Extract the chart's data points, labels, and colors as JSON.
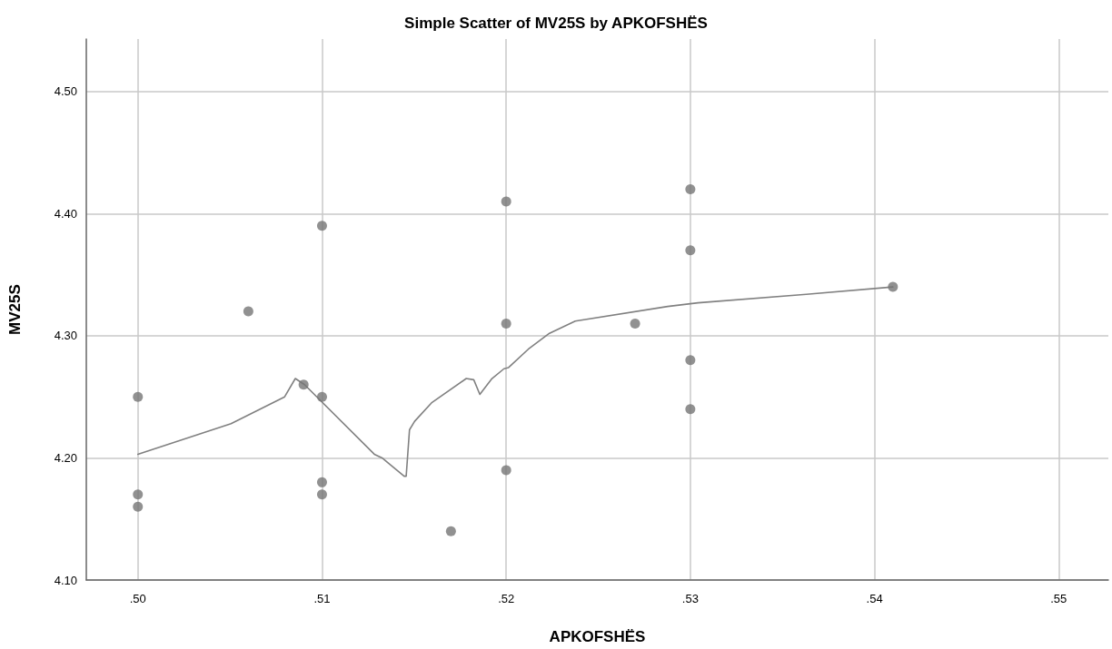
{
  "chart_data": {
    "type": "scatter",
    "title": "Simple Scatter of MV25S by APKOFSHËS",
    "xlabel": "APKOFSHËS",
    "ylabel": "MV25S",
    "xlim": [
      0.4972,
      0.5527
    ],
    "ylim": [
      4.1,
      4.543
    ],
    "xticks": [
      {
        "value": 0.5,
        "label": ".50"
      },
      {
        "value": 0.51,
        "label": ".51"
      },
      {
        "value": 0.52,
        "label": ".52"
      },
      {
        "value": 0.53,
        "label": ".53"
      },
      {
        "value": 0.54,
        "label": ".54"
      },
      {
        "value": 0.55,
        "label": ".55"
      }
    ],
    "yticks": [
      {
        "value": 4.1,
        "label": "4.10"
      },
      {
        "value": 4.2,
        "label": "4.20"
      },
      {
        "value": 4.3,
        "label": "4.30"
      },
      {
        "value": 4.4,
        "label": "4.40"
      },
      {
        "value": 4.5,
        "label": "4.50"
      }
    ],
    "grid": true,
    "marker": "circle",
    "series": [
      {
        "color": "#767676",
        "x": [
          0.5,
          0.5,
          0.5,
          0.506,
          0.509,
          0.51,
          0.51,
          0.51,
          0.51,
          0.517,
          0.52,
          0.52,
          0.52,
          0.527,
          0.53,
          0.53,
          0.53,
          0.53,
          0.541
        ],
        "values": [
          4.25,
          4.17,
          4.16,
          4.32,
          4.26,
          4.39,
          4.25,
          4.18,
          4.17,
          4.14,
          4.41,
          4.31,
          4.19,
          4.31,
          4.42,
          4.37,
          4.28,
          4.24,
          4.34
        ]
      },
      {
        "type": "line",
        "color": "#808080",
        "marker": "none",
        "line_style": "solid",
        "x": [
          0.5,
          0.50506,
          0.50797,
          0.50855,
          0.50905,
          0.51284,
          0.51326,
          0.51446,
          0.51457,
          0.51475,
          0.51503,
          0.51594,
          0.51783,
          0.51824,
          0.51857,
          0.51923,
          0.51988,
          0.52013,
          0.5212,
          0.52235,
          0.52375,
          0.52877,
          0.53041,
          0.5363,
          0.541
        ],
        "values": [
          4.203,
          4.228,
          4.25,
          4.265,
          4.26,
          4.203,
          4.2,
          4.185,
          4.185,
          4.223,
          4.23,
          4.245,
          4.265,
          4.264,
          4.252,
          4.265,
          4.273,
          4.274,
          4.289,
          4.302,
          4.312,
          4.324,
          4.327,
          4.334,
          4.34
        ]
      }
    ]
  }
}
